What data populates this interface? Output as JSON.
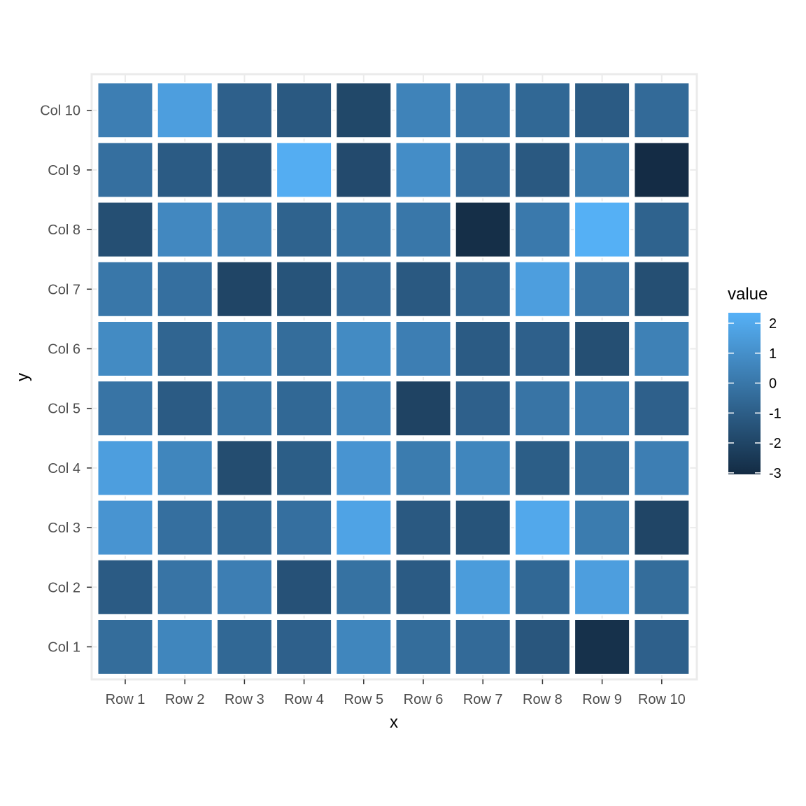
{
  "chart_data": {
    "type": "heatmap",
    "title": "",
    "xlabel": "x",
    "ylabel": "y",
    "x_categories": [
      "Row 1",
      "Row 2",
      "Row 3",
      "Row 4",
      "Row 5",
      "Row 6",
      "Row 7",
      "Row 8",
      "Row 9",
      "Row 10"
    ],
    "y_categories": [
      "Col 1",
      "Col 2",
      "Col 3",
      "Col 4",
      "Col 5",
      "Col 6",
      "Col 7",
      "Col 8",
      "Col 9",
      "Col 10"
    ],
    "values": [
      [
        -0.4,
        0.6,
        -0.6,
        -0.9,
        0.6,
        -0.4,
        -0.5,
        -1.3,
        -2.8,
        -0.9
      ],
      [
        -1.1,
        -0.1,
        0.3,
        -1.5,
        -0.2,
        -1.1,
        1.5,
        -0.6,
        1.6,
        -0.4
      ],
      [
        1.2,
        -0.3,
        -0.6,
        -0.3,
        1.8,
        -1.2,
        -1.4,
        2.0,
        0.2,
        -2.0
      ],
      [
        1.6,
        0.6,
        -1.7,
        -1.0,
        1.2,
        0.2,
        0.6,
        -1.0,
        -0.4,
        0.3
      ],
      [
        -0.1,
        -1.1,
        -0.2,
        -0.6,
        0.5,
        -2.1,
        -0.9,
        -0.1,
        0.1,
        -0.9
      ],
      [
        0.8,
        -0.7,
        0.2,
        -0.4,
        0.8,
        0.3,
        -1.1,
        -0.9,
        -1.6,
        0.4
      ],
      [
        0.0,
        -0.3,
        -2.0,
        -1.4,
        -0.5,
        -1.2,
        -0.7,
        1.6,
        -0.1,
        -1.6
      ],
      [
        -1.6,
        0.7,
        0.4,
        -0.8,
        -0.2,
        0.0,
        -2.9,
        0.1,
        2.3,
        -0.8
      ],
      [
        -0.3,
        -1.1,
        -1.3,
        2.2,
        -1.8,
        0.9,
        -0.5,
        -1.2,
        0.2,
        -3.0
      ],
      [
        0.3,
        1.6,
        -0.9,
        -1.2,
        -1.9,
        0.5,
        -0.1,
        -0.6,
        -1.1,
        -0.5
      ]
    ],
    "legend": {
      "title": "value",
      "ticks": [
        2,
        1,
        0,
        -1,
        -2,
        -3
      ],
      "tick_labels": [
        "2",
        "1",
        "0",
        "-1",
        "-2",
        "-3"
      ],
      "range": [
        -3.05,
        2.35
      ],
      "low_color": "#132B43",
      "high_color": "#56B1F7"
    },
    "grid": true,
    "legend_position": "right",
    "panel_border_color": "#ebebeb",
    "tile_border_color": "#ffffff"
  }
}
